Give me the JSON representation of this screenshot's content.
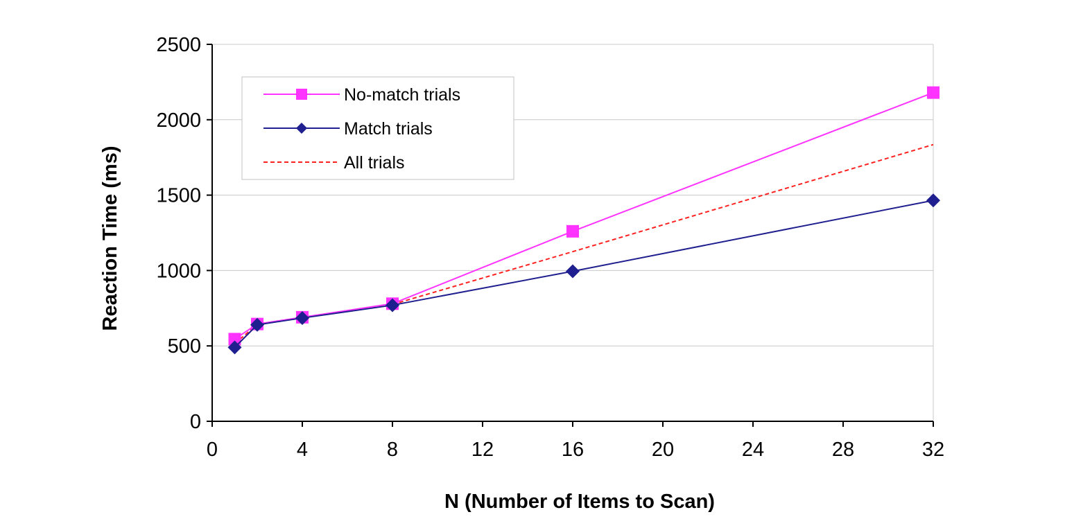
{
  "chart_data": {
    "type": "line",
    "title": "",
    "xlabel": "N (Number of Items to Scan)",
    "ylabel": "Reaction Time (ms)",
    "xlim": [
      0,
      32
    ],
    "ylim": [
      0,
      2500
    ],
    "xticks": [
      0,
      4,
      8,
      12,
      16,
      20,
      24,
      28,
      32
    ],
    "yticks": [
      0,
      500,
      1000,
      1500,
      2000,
      2500
    ],
    "grid": "horizontal",
    "legend_position": "top-left",
    "series": [
      {
        "name": "No-match trials",
        "color": "#ff33ff",
        "marker": "square",
        "line_style": "solid",
        "x": [
          1,
          2,
          4,
          8,
          16,
          32
        ],
        "y": [
          545,
          645,
          690,
          780,
          1260,
          2180
        ]
      },
      {
        "name": "Match trials",
        "color": "#1f1f8f",
        "marker": "diamond",
        "line_style": "solid",
        "x": [
          1,
          2,
          4,
          8,
          16,
          32
        ],
        "y": [
          490,
          640,
          685,
          770,
          995,
          1465
        ]
      },
      {
        "name": "All trials",
        "color": "#ff2020",
        "marker": "none",
        "line_style": "dashed",
        "x": [
          1,
          2,
          4,
          8,
          16,
          32
        ],
        "y": [
          515,
          642,
          688,
          775,
          1125,
          1835
        ]
      }
    ]
  }
}
